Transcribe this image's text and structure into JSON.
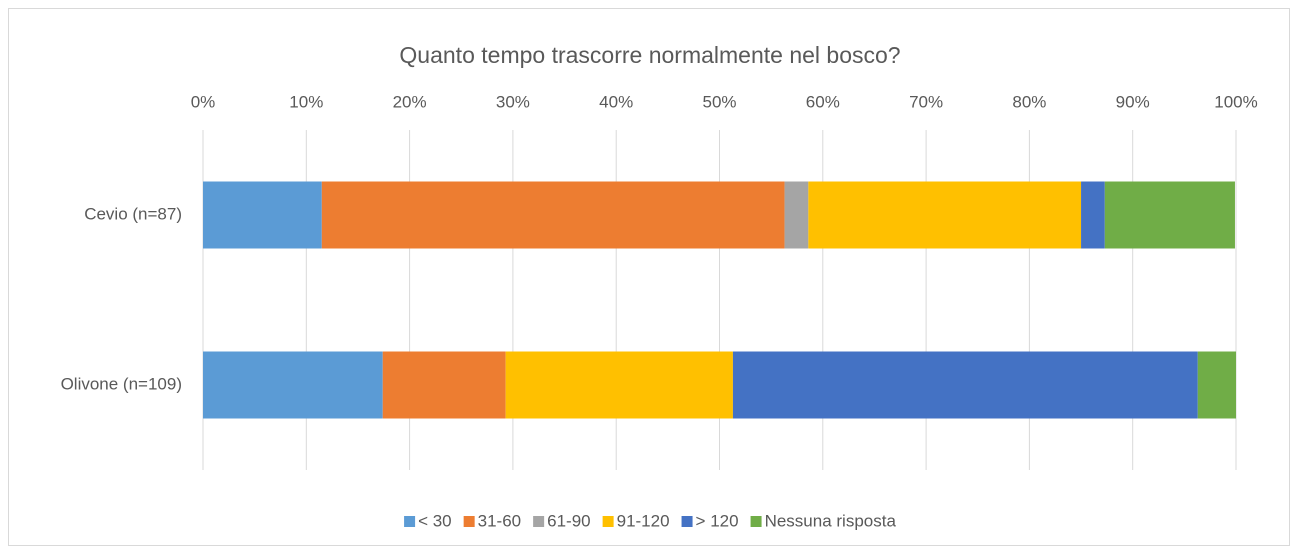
{
  "chart_data": {
    "type": "stacked_bar_horizontal",
    "title": "Quanto tempo trascorre normalmente nel bosco?",
    "categories": [
      "Cevio (n=87)",
      "Olivone (n=109)"
    ],
    "series": [
      {
        "name": "< 30",
        "color": "#5b9bd5",
        "values": [
          11.5,
          17.4
        ]
      },
      {
        "name": "31-60",
        "color": "#ed7d31",
        "values": [
          44.8,
          11.9
        ]
      },
      {
        "name": "61-90",
        "color": "#a5a5a5",
        "values": [
          2.3,
          0
        ]
      },
      {
        "name": "91-120",
        "color": "#ffc000",
        "values": [
          26.4,
          22.0
        ]
      },
      {
        "name": "> 120",
        "color": "#4472c4",
        "values": [
          2.3,
          45.0
        ]
      },
      {
        "name": "Nessuna risposta",
        "color": "#70ad47",
        "values": [
          12.6,
          3.7
        ]
      }
    ],
    "xlim": [
      0,
      100
    ],
    "xticks": [
      {
        "value": 0,
        "label": "0%"
      },
      {
        "value": 10,
        "label": "10%"
      },
      {
        "value": 20,
        "label": "20%"
      },
      {
        "value": 30,
        "label": "30%"
      },
      {
        "value": 40,
        "label": "40%"
      },
      {
        "value": 50,
        "label": "50%"
      },
      {
        "value": 60,
        "label": "60%"
      },
      {
        "value": 70,
        "label": "70%"
      },
      {
        "value": 80,
        "label": "80%"
      },
      {
        "value": 90,
        "label": "90%"
      },
      {
        "value": 100,
        "label": "100%"
      }
    ],
    "grid": true,
    "legend": "bottom"
  }
}
